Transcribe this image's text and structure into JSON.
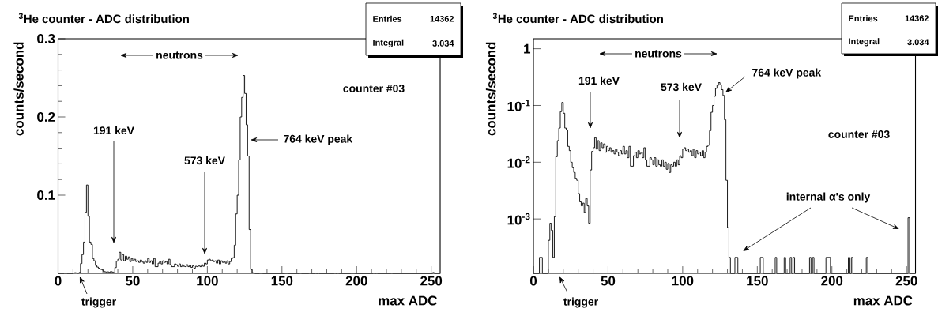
{
  "chart_data": [
    {
      "type": "histogram",
      "title": "$^{3}$He counter - ADC distribution",
      "xlabel": "max ADC",
      "ylabel": "counts/second",
      "bins": [
        0,
        4,
        6,
        10,
        11,
        12,
        13,
        14,
        15,
        16,
        17,
        18,
        19,
        20,
        21,
        22,
        23,
        24,
        25,
        26,
        27,
        28,
        29,
        30,
        31,
        32,
        33,
        34,
        35,
        36,
        37,
        38,
        39,
        40,
        41,
        42,
        43,
        44,
        45,
        46,
        47,
        48,
        49,
        50,
        51,
        52,
        53,
        54,
        55,
        56,
        57,
        58,
        59,
        60,
        61,
        62,
        63,
        64,
        65,
        66,
        67,
        68,
        69,
        70,
        71,
        72,
        73,
        74,
        75,
        76,
        77,
        78,
        79,
        80,
        81,
        82,
        83,
        84,
        85,
        86,
        87,
        88,
        89,
        90,
        91,
        92,
        93,
        94,
        95,
        96,
        97,
        98,
        99,
        100,
        101,
        102,
        103,
        104,
        105,
        106,
        107,
        108,
        109,
        110,
        111,
        112,
        113,
        114,
        115,
        116,
        117,
        118,
        119,
        120,
        121,
        122,
        123,
        124,
        125,
        126,
        127,
        128,
        129,
        130,
        131,
        132,
        133,
        135,
        137,
        152,
        154,
        162,
        163,
        168,
        169,
        172,
        173,
        174,
        175,
        185,
        186,
        187,
        188,
        196,
        199,
        211,
        212,
        213,
        214,
        223,
        224,
        251,
        252,
        256
      ],
      "values": [
        0,
        0.00021,
        0,
        0.00042,
        0.00084,
        0.00063,
        0.00021,
        0.0011,
        0.0125,
        0.024,
        0.04,
        0.078,
        0.113,
        0.073,
        0.04,
        0.037,
        0.019,
        0.016,
        0.01,
        0.008,
        0.0066,
        0.0052,
        0.0048,
        0.0028,
        0.002,
        0.0017,
        0.0019,
        0.0013,
        0.0023,
        0.0017,
        0.00084,
        0.0073,
        0.0155,
        0.018,
        0.027,
        0.017,
        0.024,
        0.016,
        0.022,
        0.018,
        0.021,
        0.015,
        0.019,
        0.016,
        0.018,
        0.015,
        0.016,
        0.014,
        0.017,
        0.015,
        0.013,
        0.016,
        0.014,
        0.019,
        0.014,
        0.016,
        0.012,
        0.019,
        0.0085,
        0.0085,
        0.013,
        0.015,
        0.012,
        0.016,
        0.014,
        0.015,
        0.012,
        0.018,
        0.011,
        0.0085,
        0.0085,
        0.012,
        0.011,
        0.009,
        0.012,
        0.0085,
        0.011,
        0.009,
        0.0085,
        0.011,
        0.0085,
        0.01,
        0.0075,
        0.0095,
        0.0066,
        0.009,
        0.0085,
        0.01,
        0.0085,
        0.011,
        0.009,
        0.013,
        0.012,
        0.017,
        0.018,
        0.016,
        0.017,
        0.015,
        0.016,
        0.013,
        0.017,
        0.012,
        0.016,
        0.014,
        0.015,
        0.013,
        0.016,
        0.012,
        0.015,
        0.019,
        0.02,
        0.036,
        0.076,
        0.1,
        0.145,
        0.2,
        0.225,
        0.253,
        0.23,
        0.19,
        0.15,
        0.056,
        0.0048,
        0.0007,
        0.00021,
        0,
        0,
        0.00021,
        0,
        0.00021,
        0,
        0.00021,
        0,
        0.00021,
        0,
        0.00021,
        0,
        0.00021,
        0,
        0.00021,
        0,
        0.00021,
        0,
        0.00021,
        0,
        0.00021,
        0,
        0.00021,
        0,
        0.00021,
        0,
        0.00105,
        0
      ],
      "color": "#000000",
      "xlim": [
        0,
        256
      ],
      "xticks": [
        0,
        50,
        100,
        150,
        200,
        250
      ],
      "ylim": [
        0,
        0.3
      ],
      "yticks": [
        0.1,
        0.2,
        0.3
      ],
      "annotations": [
        "neutrons",
        "191 keV",
        "573 keV",
        "764 keV peak",
        "trigger",
        "counter #03",
        "Entries",
        "14362",
        "Integral",
        "3.034"
      ]
    },
    {
      "type": "histogram",
      "title": "$^{3}$He counter - ADC distribution",
      "xlabel": "max ADC",
      "ylabel": "counts/second",
      "log": "y",
      "bins": [
        0,
        4,
        6,
        10,
        11,
        12,
        13,
        14,
        15,
        16,
        17,
        18,
        19,
        20,
        21,
        22,
        23,
        24,
        25,
        26,
        27,
        28,
        29,
        30,
        31,
        32,
        33,
        34,
        35,
        36,
        37,
        38,
        39,
        40,
        41,
        42,
        43,
        44,
        45,
        46,
        47,
        48,
        49,
        50,
        51,
        52,
        53,
        54,
        55,
        56,
        57,
        58,
        59,
        60,
        61,
        62,
        63,
        64,
        65,
        66,
        67,
        68,
        69,
        70,
        71,
        72,
        73,
        74,
        75,
        76,
        77,
        78,
        79,
        80,
        81,
        82,
        83,
        84,
        85,
        86,
        87,
        88,
        89,
        90,
        91,
        92,
        93,
        94,
        95,
        96,
        97,
        98,
        99,
        100,
        101,
        102,
        103,
        104,
        105,
        106,
        107,
        108,
        109,
        110,
        111,
        112,
        113,
        114,
        115,
        116,
        117,
        118,
        119,
        120,
        121,
        122,
        123,
        124,
        125,
        126,
        127,
        128,
        129,
        130,
        131,
        132,
        133,
        135,
        137,
        152,
        154,
        162,
        163,
        168,
        169,
        172,
        173,
        174,
        175,
        185,
        186,
        187,
        188,
        196,
        199,
        211,
        212,
        213,
        214,
        223,
        224,
        251,
        252,
        256
      ],
      "values": [
        null,
        0.00021,
        null,
        0.00042,
        0.00084,
        0.00063,
        0.00021,
        0.0011,
        0.0125,
        0.024,
        0.04,
        0.078,
        0.113,
        0.073,
        0.04,
        0.037,
        0.019,
        0.016,
        0.01,
        0.008,
        0.0066,
        0.0052,
        0.0048,
        0.0028,
        0.002,
        0.0017,
        0.0019,
        0.0013,
        0.0023,
        0.0017,
        0.00084,
        0.0073,
        0.0155,
        0.018,
        0.027,
        0.017,
        0.024,
        0.016,
        0.022,
        0.018,
        0.021,
        0.015,
        0.019,
        0.016,
        0.018,
        0.015,
        0.016,
        0.014,
        0.017,
        0.015,
        0.013,
        0.016,
        0.014,
        0.019,
        0.014,
        0.016,
        0.012,
        0.019,
        0.0085,
        0.0085,
        0.013,
        0.015,
        0.012,
        0.016,
        0.014,
        0.015,
        0.012,
        0.018,
        0.011,
        0.0085,
        0.0085,
        0.012,
        0.011,
        0.009,
        0.012,
        0.0085,
        0.011,
        0.009,
        0.0085,
        0.011,
        0.0085,
        0.01,
        0.0075,
        0.0095,
        0.0066,
        0.009,
        0.0085,
        0.01,
        0.0085,
        0.011,
        0.009,
        0.013,
        0.012,
        0.017,
        0.018,
        0.016,
        0.017,
        0.015,
        0.016,
        0.013,
        0.017,
        0.012,
        0.016,
        0.014,
        0.015,
        0.013,
        0.016,
        0.012,
        0.015,
        0.019,
        0.02,
        0.036,
        0.076,
        0.1,
        0.145,
        0.2,
        0.225,
        0.253,
        0.23,
        0.19,
        0.15,
        0.056,
        0.0048,
        0.0007,
        0.00021,
        null,
        null,
        0.00021,
        null,
        0.00021,
        null,
        0.00021,
        null,
        0.00021,
        null,
        0.00021,
        null,
        0.00021,
        null,
        0.00021,
        null,
        0.00021,
        null,
        0.00021,
        null,
        0.00021,
        null,
        0.00021,
        null,
        0.00021,
        null,
        0.00105,
        null
      ],
      "color": "#000000",
      "xlim": [
        0,
        256
      ],
      "xticks": [
        0,
        50,
        100,
        150,
        200,
        250
      ],
      "ylim": [
        0.00011,
        1.5
      ],
      "yticks": [
        {
          "value": 0.001,
          "label": "10$^{-3}$"
        },
        {
          "value": 0.01,
          "label": "10$^{-2}$"
        },
        {
          "value": 0.1,
          "label": "10$^{-1}$"
        },
        1
      ],
      "annotations": [
        "neutrons",
        "191 keV",
        "573 keV",
        "764 keV peak",
        "trigger",
        "counter #03",
        "internal α's only",
        "Entries",
        "14362",
        "Integral",
        "3.034"
      ]
    }
  ]
}
